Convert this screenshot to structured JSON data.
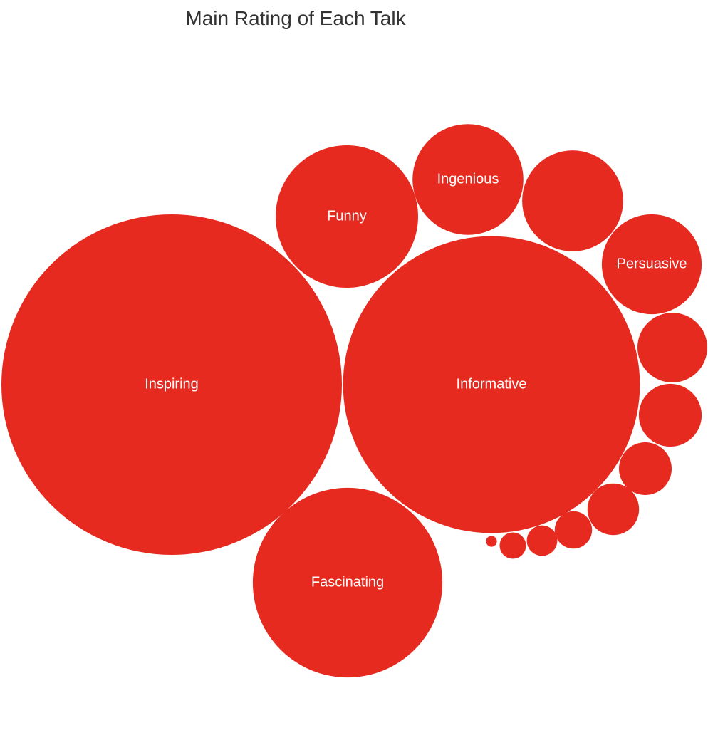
{
  "chart_data": {
    "type": "bubble",
    "title": "Main Rating of Each Talk",
    "color": "#e62a1f",
    "label_color": "#ffffff",
    "bubbles": [
      {
        "label": "Inspiring",
        "value": 1000
      },
      {
        "label": "Informative",
        "value": 760
      },
      {
        "label": "Fascinating",
        "value": 310
      },
      {
        "label": "Funny",
        "value": 175
      },
      {
        "label": "Ingenious",
        "value": 106
      },
      {
        "label": "",
        "value": 88
      },
      {
        "label": "Persuasive",
        "value": 86
      },
      {
        "label": "",
        "value": 42
      },
      {
        "label": "",
        "value": 34
      },
      {
        "label": "",
        "value": 24
      },
      {
        "label": "",
        "value": 23
      },
      {
        "label": "",
        "value": 12
      },
      {
        "label": "",
        "value": 8
      },
      {
        "label": "",
        "value": 6
      },
      {
        "label": "",
        "value": 1
      }
    ]
  }
}
